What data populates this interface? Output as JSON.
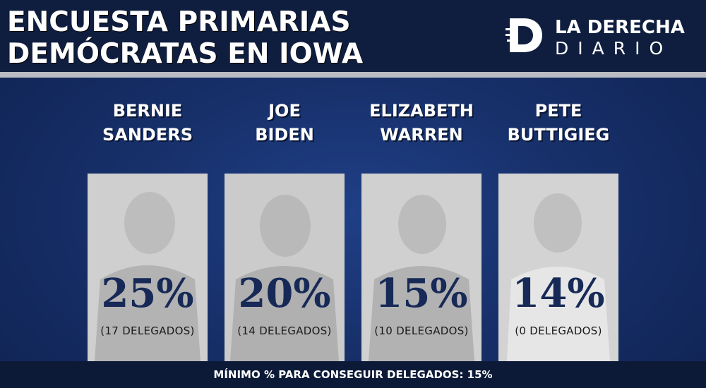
{
  "header": {
    "title_line1": "ENCUESTA PRIMARIAS",
    "title_line2": "DEMÓCRATAS EN IOWA",
    "brand_line1": "LA DERECHA",
    "brand_line2": "DIARIO",
    "logo_letter": "D"
  },
  "chart_data": {
    "type": "table",
    "title": "ENCUESTA PRIMARIAS DEMÓCRATAS EN IOWA",
    "candidates": [
      {
        "name_line1": "BERNIE",
        "name_line2": "SANDERS",
        "percent": 25,
        "percent_label": "25%",
        "delegates": 17,
        "delegates_label": "(17 DELEGADOS)"
      },
      {
        "name_line1": "JOE",
        "name_line2": "BIDEN",
        "percent": 20,
        "percent_label": "20%",
        "delegates": 14,
        "delegates_label": "(14 DELEGADOS)"
      },
      {
        "name_line1": "ELIZABETH",
        "name_line2": "WARREN",
        "percent": 15,
        "percent_label": "15%",
        "delegates": 10,
        "delegates_label": "(10 DELEGADOS)"
      },
      {
        "name_line1": "PETE",
        "name_line2": "BUTTIGIEG",
        "percent": 14,
        "percent_label": "14%",
        "delegates": 0,
        "delegates_label": "(0 DELEGADOS)"
      }
    ],
    "footnote": "MÍNIMO % PARA CONSEGUIR DELEGADOS: 15%"
  },
  "colors": {
    "background": "#17306a",
    "header": "#0f1e3f",
    "percent_text": "#172a57",
    "text": "#ffffff"
  }
}
